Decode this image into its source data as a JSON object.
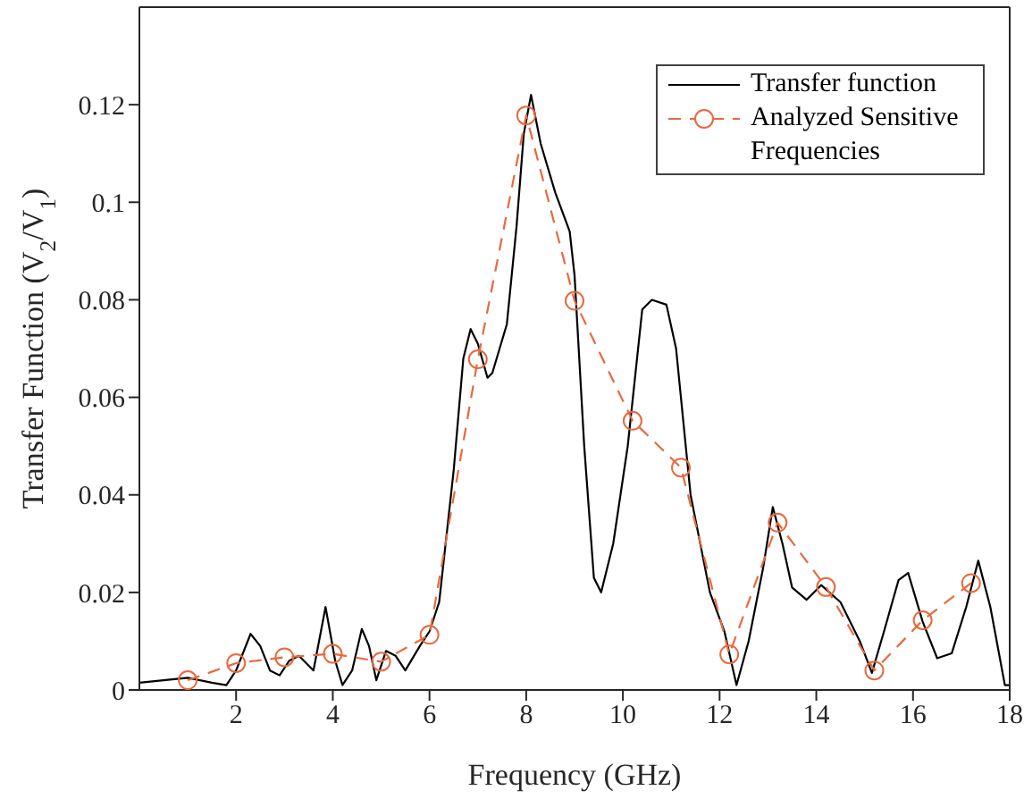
{
  "chart_data": {
    "type": "line",
    "xlabel": "Frequency (GHz)",
    "ylabel": "Transfer Function (V$_{2}$/V$_{1}$)",
    "xlim": [
      0,
      18
    ],
    "xticks": [
      2,
      4,
      6,
      8,
      10,
      12,
      14,
      16,
      18
    ],
    "ylim": [
      0,
      0.14
    ],
    "yticks": [
      0,
      0.02,
      0.04,
      0.06,
      0.08,
      0.1,
      0.12
    ],
    "legend": "top right",
    "series": [
      {
        "name": "Transfer function",
        "color": "#000000",
        "marker": "none",
        "line_style": "solid",
        "x": [
          0,
          0.5,
          1.0,
          1.5,
          1.8,
          2.0,
          2.3,
          2.5,
          2.7,
          2.9,
          3.1,
          3.3,
          3.6,
          3.85,
          4.05,
          4.2,
          4.4,
          4.6,
          4.75,
          4.9,
          5.1,
          5.3,
          5.5,
          5.8,
          6.0,
          6.2,
          6.5,
          6.7,
          6.85,
          7.0,
          7.2,
          7.3,
          7.6,
          7.8,
          7.95,
          8.1,
          8.3,
          8.6,
          8.9,
          9.0,
          9.2,
          9.4,
          9.55,
          9.8,
          10.1,
          10.4,
          10.6,
          10.9,
          11.1,
          11.4,
          11.8,
          12.1,
          12.35,
          12.6,
          12.9,
          13.1,
          13.3,
          13.5,
          13.8,
          14.1,
          14.5,
          14.9,
          15.15,
          15.4,
          15.7,
          15.9,
          16.2,
          16.5,
          16.8,
          17.1,
          17.35,
          17.6,
          17.9,
          18.0
        ],
        "values": [
          0.0015,
          0.002,
          0.0025,
          0.0015,
          0.001,
          0.004,
          0.0115,
          0.009,
          0.004,
          0.003,
          0.006,
          0.007,
          0.004,
          0.017,
          0.006,
          0.001,
          0.004,
          0.0125,
          0.009,
          0.002,
          0.008,
          0.007,
          0.004,
          0.009,
          0.012,
          0.018,
          0.045,
          0.068,
          0.074,
          0.071,
          0.064,
          0.065,
          0.075,
          0.095,
          0.114,
          0.122,
          0.112,
          0.102,
          0.094,
          0.085,
          0.05,
          0.023,
          0.02,
          0.03,
          0.05,
          0.078,
          0.08,
          0.079,
          0.07,
          0.04,
          0.02,
          0.012,
          0.001,
          0.01,
          0.025,
          0.0375,
          0.03,
          0.021,
          0.0185,
          0.0215,
          0.018,
          0.01,
          0.0035,
          0.012,
          0.0225,
          0.024,
          0.014,
          0.0065,
          0.0075,
          0.017,
          0.0265,
          0.017,
          0.001,
          0.001
        ]
      },
      {
        "name": "Analyzed Sensitive Frequencies",
        "color": "#e8693f",
        "marker": "circle",
        "line_style": "dashed",
        "x": [
          1,
          2,
          3,
          4,
          5,
          6,
          7,
          8,
          9,
          10.2,
          11.2,
          12.2,
          13.2,
          14.2,
          15.2,
          16.2,
          17.2
        ],
        "values": [
          0.002,
          0.0055,
          0.0067,
          0.0074,
          0.0058,
          0.0113,
          0.0678,
          0.1178,
          0.0798,
          0.0552,
          0.0456,
          0.0073,
          0.0343,
          0.0211,
          0.004,
          0.0143,
          0.0219
        ]
      }
    ]
  }
}
